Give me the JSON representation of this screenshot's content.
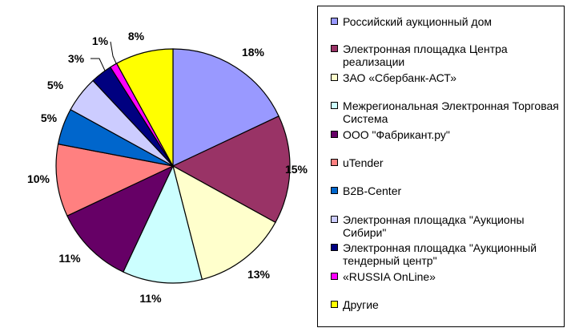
{
  "chart_data": {
    "type": "pie",
    "title": "",
    "legend_position": "right",
    "slices": [
      {
        "label": "Российский аукционный дом",
        "value": 18,
        "value_label": "18%",
        "color": "#9999FF"
      },
      {
        "label": "Электронная площадка Центра реализации",
        "value": 15,
        "value_label": "15%",
        "color": "#993366"
      },
      {
        "label": "ЗАО «Сбербанк-АСТ»",
        "value": 13,
        "value_label": "13%",
        "color": "#FFFFCC"
      },
      {
        "label": "Межрегиональная Электронная Торговая Система",
        "value": 11,
        "value_label": "11%",
        "color": "#CCFFFF"
      },
      {
        "label": "ООО \"Фабрикант.ру\"",
        "value": 11,
        "value_label": "11%",
        "color": "#660066"
      },
      {
        "label": "uTender",
        "value": 10,
        "value_label": "10%",
        "color": "#FF8080"
      },
      {
        "label": "B2B-Center",
        "value": 5,
        "value_label": "5%",
        "color": "#0066CC"
      },
      {
        "label": "Электронная площадка \"Аукционы Сибири\"",
        "value": 5,
        "value_label": "5%",
        "color": "#CCCCFF"
      },
      {
        "label": "Электронная площадка \"Аукционный тендерный центр\"",
        "value": 3,
        "value_label": "3%",
        "color": "#000080"
      },
      {
        "label": "«RUSSIA OnLine»",
        "value": 1,
        "value_label": "1%",
        "color": "#FF00FF"
      },
      {
        "label": "Другие",
        "value": 8,
        "value_label": "8%",
        "color": "#FFFF00"
      }
    ]
  }
}
